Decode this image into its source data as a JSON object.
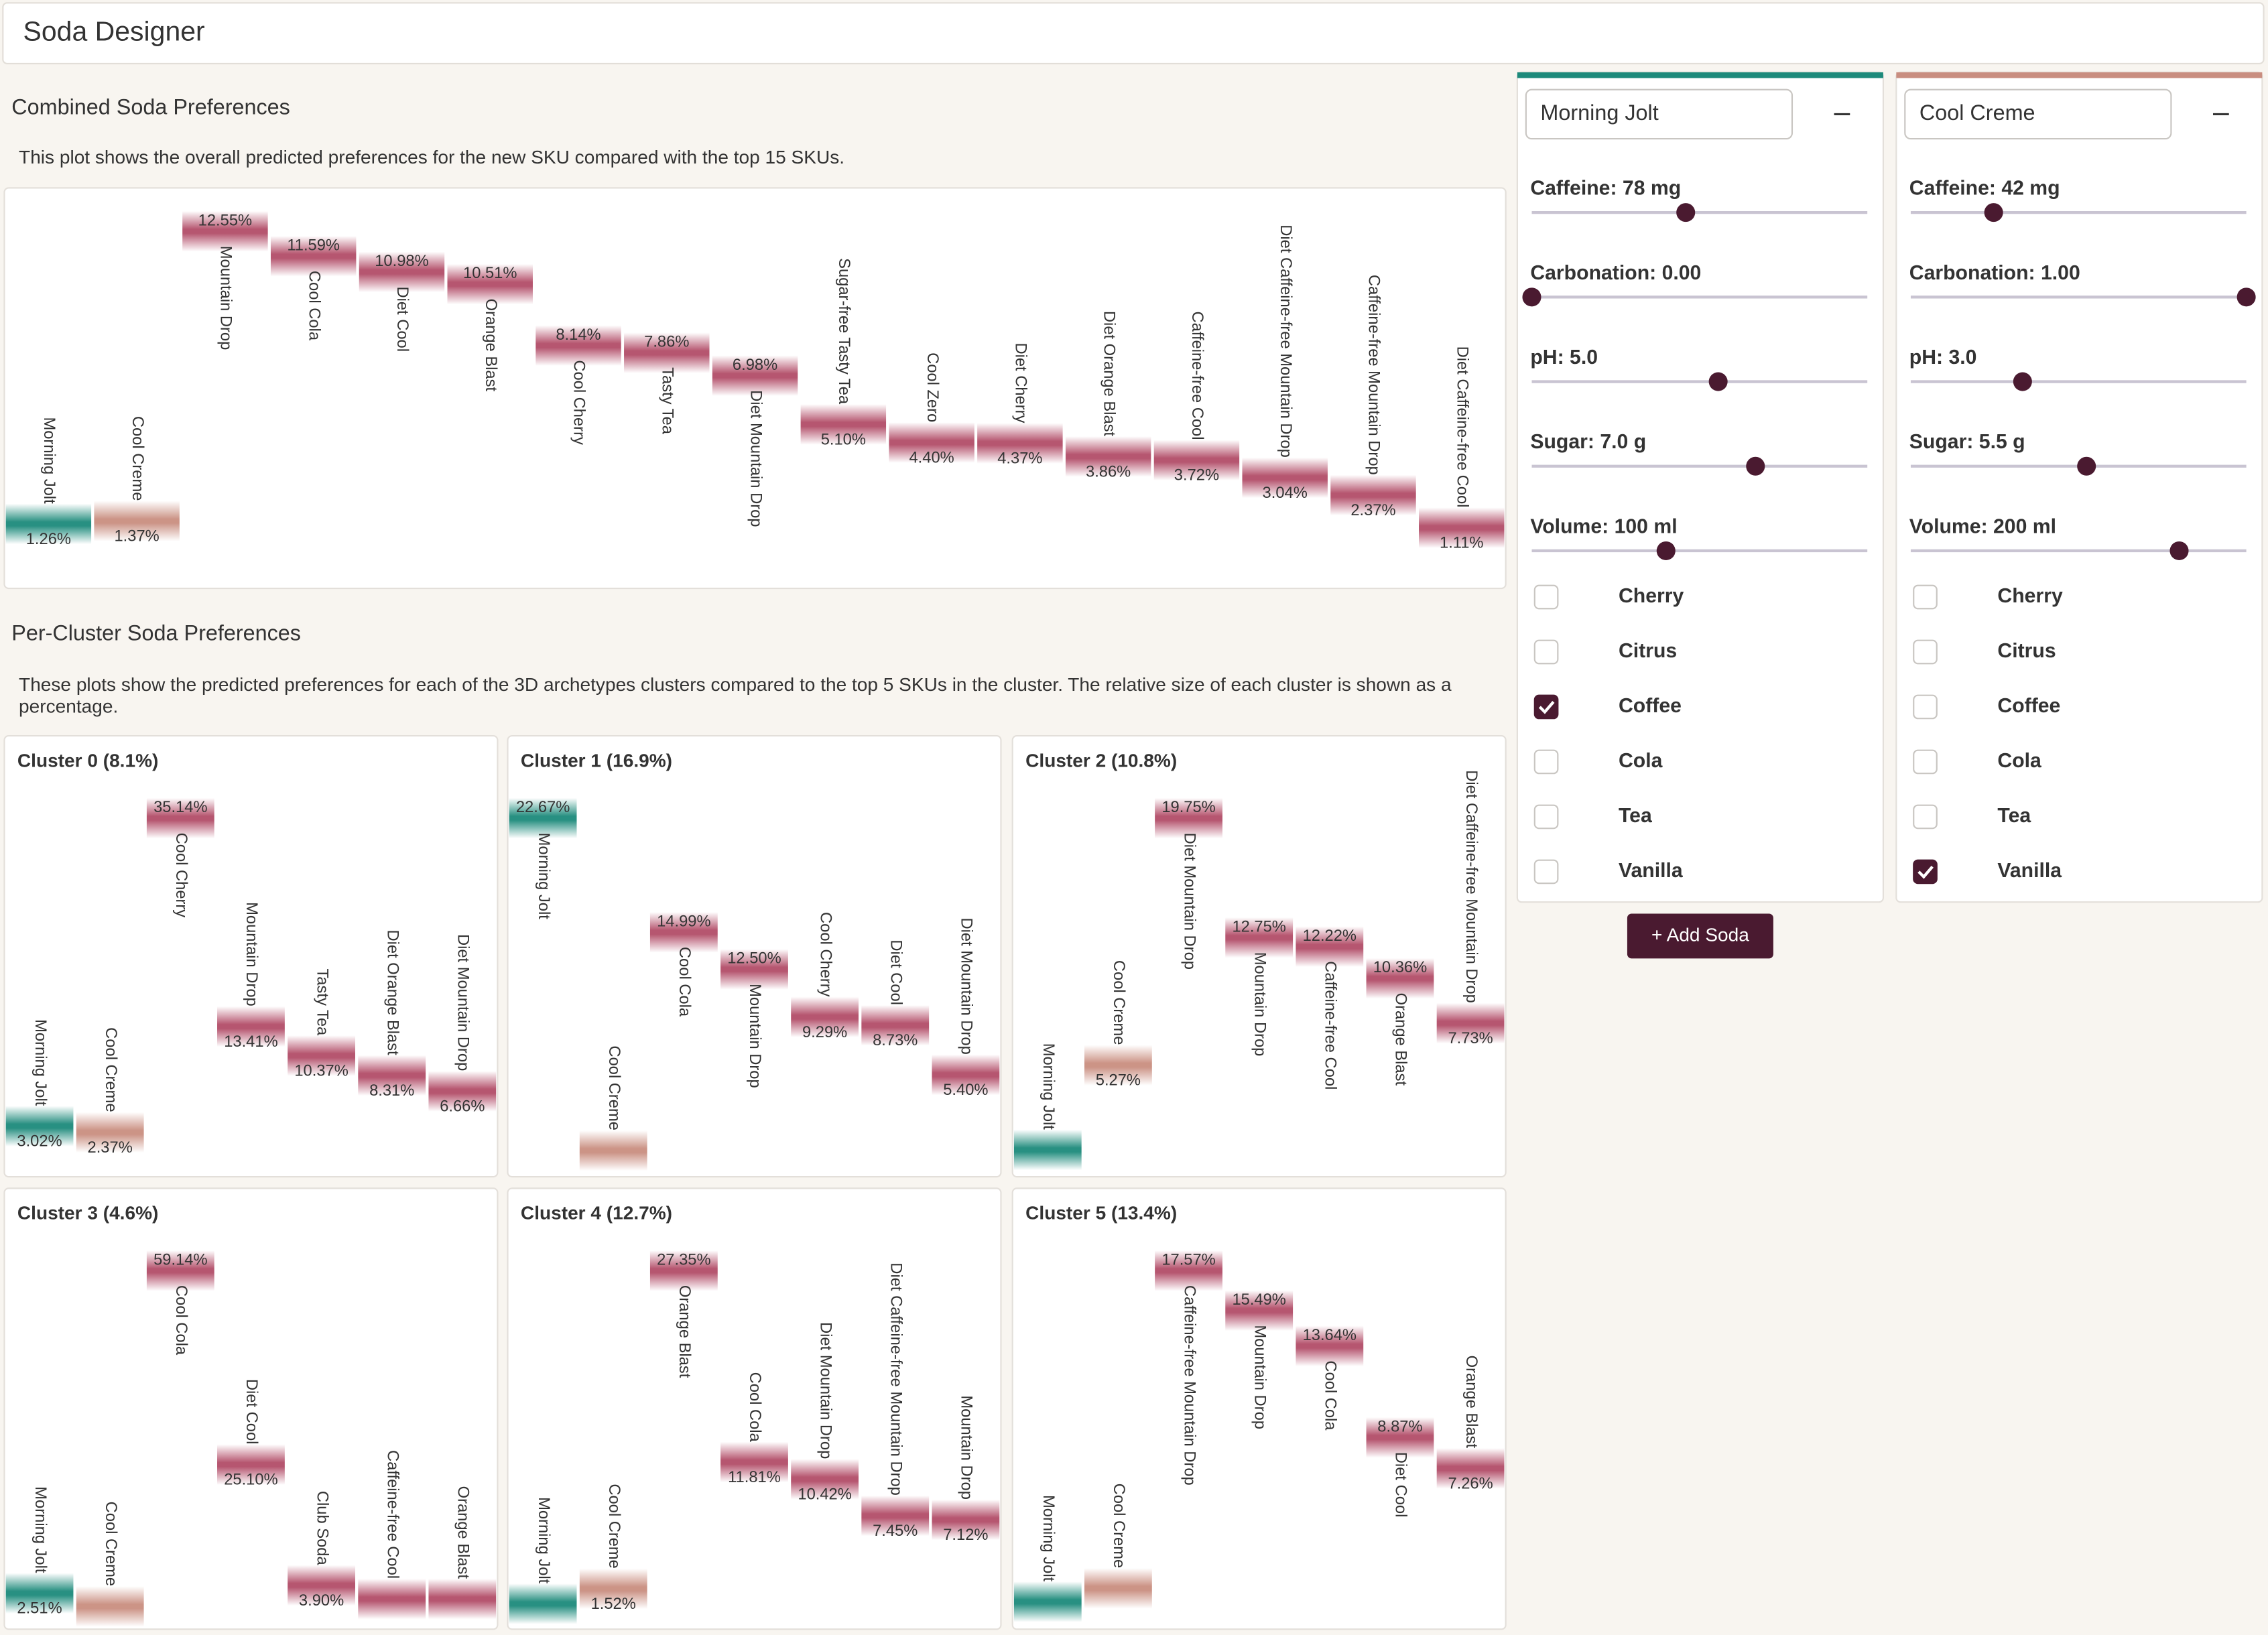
{
  "header": {
    "title": "Soda Designer"
  },
  "combined": {
    "title": "Combined Soda Preferences",
    "description": "This plot shows the overall predicted preferences for the new SKU compared with the top 15 SKUs.",
    "chart": {
      "type": "bar",
      "color": "#b24d68",
      "categories": [
        "Morning Jolt",
        "Cool Creme",
        "Mountain Drop",
        "Cool Cola",
        "Diet Cool",
        "Orange Blast",
        "Cool Cherry",
        "Tasty Tea",
        "Diet Mountain Drop",
        "Sugar-free Tasty Tea",
        "Cool Zero",
        "Diet Cherry",
        "Diet Orange Blast",
        "Caffeine-free Cool",
        "Diet Caffeine-free Mountain Drop",
        "Caffeine-free Mountain Drop",
        "Diet Caffeine-free Cool"
      ],
      "values": [
        1.26,
        1.37,
        12.55,
        11.59,
        10.98,
        10.51,
        8.14,
        7.86,
        6.98,
        5.1,
        4.4,
        4.37,
        3.86,
        3.72,
        3.04,
        2.37,
        1.11
      ],
      "value_labels": [
        "1.26%",
        "1.37%",
        "12.55%",
        "11.59%",
        "10.98%",
        "10.51%",
        "8.14%",
        "7.86%",
        "6.98%",
        "5.10%",
        "4.40%",
        "4.37%",
        "3.86%",
        "3.72%",
        "3.04%",
        "2.37%",
        "1.11%"
      ]
    }
  },
  "clusters": {
    "title": "Per-Cluster Soda Preferences",
    "description": "These plots show the predicted preferences for each of the 3D archetypes clusters compared to the top 5 SKUs in the cluster. The relative size of each cluster is shown as a percentage.",
    "charts": [
      {
        "type": "bar",
        "title": "Cluster 0 (8.1%)",
        "color": "#b24d68",
        "categories": [
          "Morning Jolt",
          "Cool Creme",
          "Cool Cherry",
          "Mountain Drop",
          "Tasty Tea",
          "Diet Orange Blast",
          "Diet Mountain Drop"
        ],
        "values": [
          3.02,
          2.37,
          35.14,
          13.41,
          10.37,
          8.31,
          6.66
        ],
        "value_labels": [
          "3.02%",
          "2.37%",
          "35.14%",
          "13.41%",
          "10.37%",
          "8.31%",
          "6.66%"
        ]
      },
      {
        "type": "bar",
        "title": "Cluster 1 (16.9%)",
        "color": "#b24d68",
        "categories": [
          "Morning Jolt",
          "Cool Creme",
          "Cool Cola",
          "Mountain Drop",
          "Cool Cherry",
          "Diet Cool",
          "Diet Mountain Drop"
        ],
        "values": [
          22.67,
          0.3,
          14.99,
          12.5,
          9.29,
          8.73,
          5.4
        ],
        "value_labels": [
          "22.67%",
          null,
          "14.99%",
          "12.50%",
          "9.29%",
          "8.73%",
          "5.40%"
        ]
      },
      {
        "type": "bar",
        "title": "Cluster 2 (10.8%)",
        "color": "#b24d68",
        "categories": [
          "Morning Jolt",
          "Cool Creme",
          "Diet Mountain Drop",
          "Mountain Drop",
          "Caffeine-free Cool",
          "Orange Blast",
          "Diet Caffeine-free Mountain Drop"
        ],
        "values": [
          0.3,
          5.27,
          19.75,
          12.75,
          12.22,
          10.36,
          7.73
        ],
        "value_labels": [
          null,
          "5.27%",
          "19.75%",
          "12.75%",
          "12.22%",
          "10.36%",
          "7.73%"
        ]
      },
      {
        "type": "bar",
        "title": "Cluster 3 (4.6%)",
        "color": "#b24d68",
        "categories": [
          "Morning Jolt",
          "Cool Creme",
          "Cool Cola",
          "Diet Cool",
          "Club Soda",
          "Caffeine-free Cool",
          "Orange Blast"
        ],
        "values": [
          2.51,
          0.2,
          59.14,
          25.1,
          3.9,
          1.5,
          1.5
        ],
        "value_labels": [
          "2.51%",
          null,
          "59.14%",
          "25.10%",
          "3.90%",
          null,
          null
        ]
      },
      {
        "type": "bar",
        "title": "Cluster 4 (12.7%)",
        "color": "#b24d68",
        "categories": [
          "Morning Jolt",
          "Cool Creme",
          "Orange Blast",
          "Cool Cola",
          "Diet Mountain Drop",
          "Diet Caffeine-free Mountain Drop",
          "Mountain Drop"
        ],
        "values": [
          0.3,
          1.52,
          27.35,
          11.81,
          10.42,
          7.45,
          7.12
        ],
        "value_labels": [
          null,
          "1.52%",
          "27.35%",
          "11.81%",
          "10.42%",
          "7.45%",
          "7.12%"
        ]
      },
      {
        "type": "bar",
        "title": "Cluster 5 (13.4%)",
        "color": "#b24d68",
        "categories": [
          "Morning Jolt",
          "Cool Creme",
          "Caffeine-free Mountain Drop",
          "Mountain Drop",
          "Cool Cola",
          "Diet Cool",
          "Orange Blast"
        ],
        "values": [
          0.3,
          1.0,
          17.57,
          15.49,
          13.64,
          8.87,
          7.26
        ],
        "value_labels": [
          null,
          null,
          "17.57%",
          "15.49%",
          "13.64%",
          "8.87%",
          "7.26%"
        ]
      }
    ]
  },
  "sodas": [
    {
      "name": "Morning Jolt",
      "color": "#1d8a7b",
      "sliders": [
        {
          "label": "Caffeine: 78 mg",
          "value": 78,
          "range": [
            0,
            170
          ]
        },
        {
          "label": "Carbonation: 0.00",
          "value": 0,
          "range": [
            0,
            1
          ]
        },
        {
          "label": "pH: 5.0",
          "value": 5,
          "range": [
            0,
            9
          ]
        },
        {
          "label": "Sugar: 7.0 g",
          "value": 7,
          "range": [
            0,
            10.5
          ]
        },
        {
          "label": "Volume: 100 ml",
          "value": 100,
          "range": [
            0,
            250
          ]
        }
      ],
      "flavors": [
        {
          "label": "Cherry",
          "checked": false
        },
        {
          "label": "Citrus",
          "checked": false
        },
        {
          "label": "Coffee",
          "checked": true
        },
        {
          "label": "Cola",
          "checked": false
        },
        {
          "label": "Tea",
          "checked": false
        },
        {
          "label": "Vanilla",
          "checked": false
        }
      ]
    },
    {
      "name": "Cool Creme",
      "color": "#c98e80",
      "sliders": [
        {
          "label": "Caffeine: 42 mg",
          "value": 42,
          "range": [
            0,
            170
          ]
        },
        {
          "label": "Carbonation: 1.00",
          "value": 1,
          "range": [
            0,
            1
          ]
        },
        {
          "label": "pH: 3.0",
          "value": 3,
          "range": [
            0,
            9
          ]
        },
        {
          "label": "Sugar: 5.5 g",
          "value": 5.5,
          "range": [
            0,
            10.5
          ]
        },
        {
          "label": "Volume: 200 ml",
          "value": 200,
          "range": [
            0,
            250
          ]
        }
      ],
      "flavors": [
        {
          "label": "Cherry",
          "checked": false
        },
        {
          "label": "Citrus",
          "checked": false
        },
        {
          "label": "Coffee",
          "checked": false
        },
        {
          "label": "Cola",
          "checked": false
        },
        {
          "label": "Tea",
          "checked": false
        },
        {
          "label": "Vanilla",
          "checked": true
        }
      ]
    }
  ],
  "add_button": {
    "label": "+ Add Soda"
  }
}
